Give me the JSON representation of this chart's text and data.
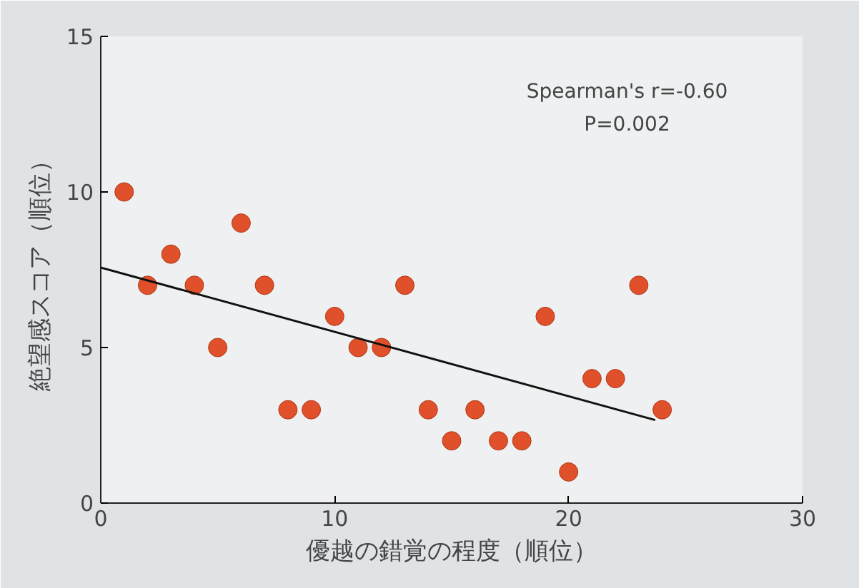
{
  "chart_data": {
    "type": "scatter",
    "xlabel": "優越の錯覚の程度（順位）",
    "ylabel": "絶望感スコア（順位）",
    "xlim": [
      0,
      30
    ],
    "ylim": [
      0,
      15
    ],
    "xticks": [
      0,
      10,
      20,
      30
    ],
    "yticks": [
      0,
      5,
      10,
      15
    ],
    "grid": false,
    "annotations": [
      "Spearman's r=-0.60",
      "P=0.002"
    ],
    "series": [
      {
        "marker": "circle",
        "color": "#e0502a",
        "x": [
          1,
          2,
          3,
          4,
          5,
          6,
          7,
          8,
          9,
          10,
          11,
          12,
          13,
          14,
          15,
          16,
          17,
          18,
          19,
          20,
          21,
          22,
          23,
          24
        ],
        "values": [
          10,
          7,
          8,
          7,
          5,
          9,
          7,
          3,
          3,
          6,
          5,
          5,
          7,
          3,
          2,
          3,
          2,
          2,
          6,
          1,
          4,
          4,
          7,
          3
        ]
      },
      {
        "type": "line",
        "color": "#111111",
        "x": [
          0,
          23.7
        ],
        "values": [
          7.57,
          2.67
        ]
      }
    ]
  }
}
